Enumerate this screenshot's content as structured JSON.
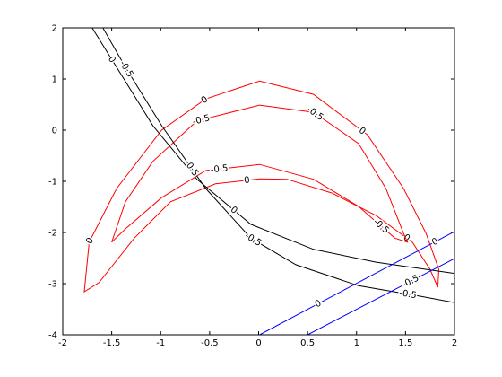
{
  "chart_data": {
    "type": "contour",
    "xlim": [
      -2,
      2
    ],
    "ylim": [
      -4,
      2
    ],
    "xticks": [
      -2,
      -1.5,
      -1,
      -0.5,
      0,
      0.5,
      1,
      1.5,
      2
    ],
    "yticks": [
      -4,
      -3,
      -2,
      -1,
      0,
      1,
      2
    ],
    "grid": false,
    "series": [
      {
        "level": 0,
        "color": "#ff0000",
        "closed": true,
        "x": [
          -1.78,
          -1.73,
          -1.45,
          -0.99,
          -0.54,
          0.01,
          0.56,
          1.11,
          1.48,
          1.71,
          1.84,
          1.83,
          1.75,
          1.57,
          1.2,
          0.75,
          0.29,
          0.01,
          -0.44,
          -0.9,
          -1.27,
          -1.63
        ],
        "y": [
          -3.16,
          -2.19,
          -1.14,
          0.0,
          0.61,
          0.96,
          0.7,
          -0.09,
          -1.14,
          -2.02,
          -2.72,
          -3.07,
          -2.72,
          -2.19,
          -1.67,
          -1.23,
          -0.96,
          -0.95,
          -1.05,
          -1.4,
          -2.11,
          -2.98
        ]
      },
      {
        "level": -0.5,
        "color": "#ff0000",
        "closed": true,
        "x": [
          -1.5,
          -1.36,
          -1.08,
          -0.63,
          0.01,
          0.56,
          1.02,
          1.3,
          1.48,
          1.52,
          1.39,
          1.02,
          0.56,
          0.01,
          -0.54,
          -0.99,
          -1.36
        ],
        "y": [
          -2.19,
          -1.4,
          -0.61,
          0.18,
          0.49,
          0.35,
          -0.26,
          -1.14,
          -2.02,
          -2.19,
          -2.11,
          -1.49,
          -0.96,
          -0.67,
          -0.79,
          -1.32,
          -1.93
        ]
      },
      {
        "level": 0,
        "color": "#000000",
        "closed": false,
        "x": [
          -1.7,
          -1.45,
          -1.08,
          -0.63,
          -0.08,
          0.56,
          1.2,
          2.0
        ],
        "y": [
          2.0,
          1.23,
          0.09,
          -0.96,
          -1.84,
          -2.33,
          -2.58,
          -2.8
        ]
      },
      {
        "level": -0.5,
        "color": "#000000",
        "closed": false,
        "x": [
          -1.59,
          -1.36,
          -0.99,
          -0.54,
          -0.08,
          0.38,
          1.02,
          1.66,
          2.0
        ],
        "y": [
          2.0,
          1.23,
          0.09,
          -1.14,
          -2.11,
          -2.63,
          -3.04,
          -3.25,
          -3.37
        ]
      },
      {
        "level": 0,
        "color": "#0000ff",
        "closed": false,
        "x": [
          0.01,
          2.0
        ],
        "y": [
          -4.0,
          -1.98
        ]
      },
      {
        "level": -0.5,
        "color": "#0000ff",
        "closed": false,
        "x": [
          0.5,
          2.0
        ],
        "y": [
          -4.0,
          -2.51
        ]
      }
    ]
  }
}
